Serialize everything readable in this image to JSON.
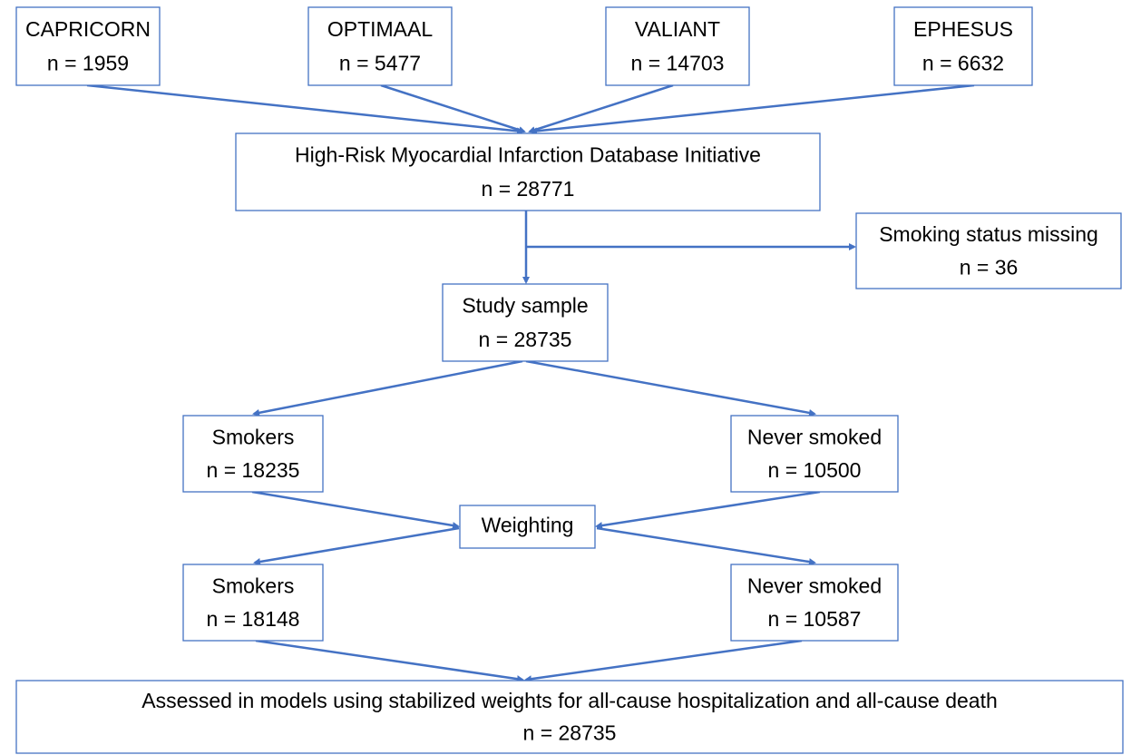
{
  "nodes": [
    {
      "title": "CAPRICORN",
      "count": "n = 1959"
    },
    {
      "title": "OPTIMAAL",
      "count": "n = 5477"
    },
    {
      "title": "VALIANT",
      "count": "n = 14703"
    },
    {
      "title": "EPHESUS",
      "count": "n = 6632"
    },
    {
      "title": "High-Risk Myocardial Infarction Database Initiative",
      "count": "n = 28771"
    },
    {
      "title": "Smoking status missing",
      "count": "n = 36"
    },
    {
      "title": "Study sample",
      "count": "n = 28735"
    },
    {
      "title": "Smokers",
      "count": "n = 18235"
    },
    {
      "title": "Never smoked",
      "count": "n = 10500"
    },
    {
      "title": "Weighting"
    },
    {
      "title": "Smokers",
      "count": "n = 18148"
    },
    {
      "title": "Never smoked",
      "count": "n = 10587"
    },
    {
      "title": "Assessed in models using stabilized weights for all-cause hospitalization and all-cause death",
      "count": "n = 28735"
    }
  ]
}
